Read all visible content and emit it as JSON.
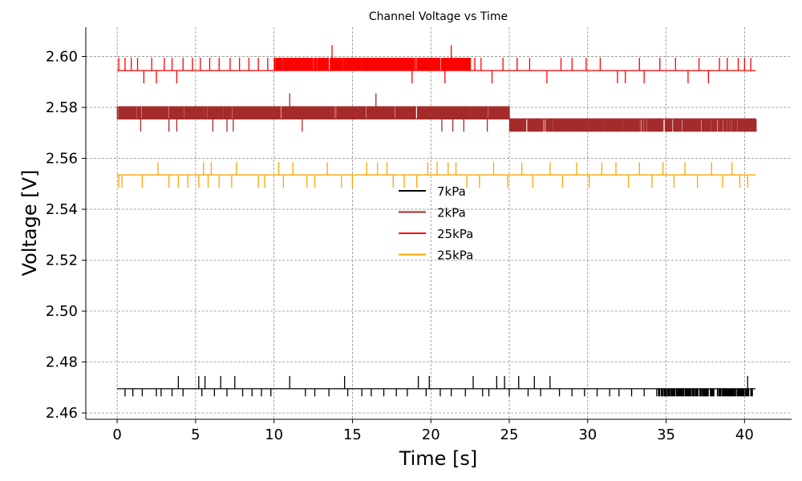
{
  "chart_data": {
    "type": "line",
    "title": "Channel Voltage vs Time",
    "xlabel": "Time [s]",
    "ylabel": "Voltage [V]",
    "xlim": [
      -2,
      43
    ],
    "ylim": [
      2.4575,
      2.6115
    ],
    "xticks": [
      0,
      5,
      10,
      15,
      20,
      25,
      30,
      35,
      40
    ],
    "xtick_labels": [
      "0",
      "5",
      "10",
      "15",
      "20",
      "25",
      "30",
      "35",
      "40"
    ],
    "yticks": [
      2.46,
      2.48,
      2.5,
      2.52,
      2.54,
      2.56,
      2.58,
      2.6
    ],
    "ytick_labels": [
      "2.46",
      "2.48",
      "2.50",
      "2.52",
      "2.54",
      "2.56",
      "2.58",
      "2.60"
    ],
    "grid": true,
    "legend_position": "center",
    "series": [
      {
        "name": "7kPa",
        "color": "#000000",
        "x_range": [
          0,
          40.7
        ],
        "baseline": 2.4695,
        "spikes": [
          {
            "x": 0.5,
            "v": 2.4665
          },
          {
            "x": 1.0,
            "v": 2.4665
          },
          {
            "x": 1.6,
            "v": 2.4665
          },
          {
            "x": 2.5,
            "v": 2.4665
          },
          {
            "x": 2.8,
            "v": 2.4665
          },
          {
            "x": 3.5,
            "v": 2.4665
          },
          {
            "x": 3.9,
            "v": 2.4745
          },
          {
            "x": 4.2,
            "v": 2.4665
          },
          {
            "x": 5.2,
            "v": 2.4745
          },
          {
            "x": 5.4,
            "v": 2.4665
          },
          {
            "x": 5.6,
            "v": 2.4745
          },
          {
            "x": 6.2,
            "v": 2.4665
          },
          {
            "x": 6.6,
            "v": 2.4745
          },
          {
            "x": 7.0,
            "v": 2.4665
          },
          {
            "x": 7.5,
            "v": 2.4745
          },
          {
            "x": 8.0,
            "v": 2.4665
          },
          {
            "x": 8.6,
            "v": 2.4665
          },
          {
            "x": 9.2,
            "v": 2.4665
          },
          {
            "x": 9.8,
            "v": 2.4665
          },
          {
            "x": 11.0,
            "v": 2.4745
          },
          {
            "x": 12.0,
            "v": 2.4665
          },
          {
            "x": 12.6,
            "v": 2.4665
          },
          {
            "x": 13.5,
            "v": 2.4665
          },
          {
            "x": 14.5,
            "v": 2.4745
          },
          {
            "x": 14.7,
            "v": 2.4665
          },
          {
            "x": 15.6,
            "v": 2.4665
          },
          {
            "x": 16.2,
            "v": 2.4665
          },
          {
            "x": 17.0,
            "v": 2.4665
          },
          {
            "x": 17.8,
            "v": 2.4665
          },
          {
            "x": 18.5,
            "v": 2.4665
          },
          {
            "x": 19.2,
            "v": 2.4745
          },
          {
            "x": 19.7,
            "v": 2.4665
          },
          {
            "x": 19.9,
            "v": 2.4745
          },
          {
            "x": 20.6,
            "v": 2.4665
          },
          {
            "x": 21.3,
            "v": 2.4665
          },
          {
            "x": 22.2,
            "v": 2.4665
          },
          {
            "x": 22.7,
            "v": 2.4745
          },
          {
            "x": 23.3,
            "v": 2.4665
          },
          {
            "x": 23.7,
            "v": 2.4665
          },
          {
            "x": 24.2,
            "v": 2.4745
          },
          {
            "x": 24.7,
            "v": 2.4745
          },
          {
            "x": 25.0,
            "v": 2.4665
          },
          {
            "x": 25.6,
            "v": 2.4745
          },
          {
            "x": 26.2,
            "v": 2.4665
          },
          {
            "x": 26.6,
            "v": 2.4745
          },
          {
            "x": 27.0,
            "v": 2.4665
          },
          {
            "x": 27.6,
            "v": 2.4745
          },
          {
            "x": 28.2,
            "v": 2.4665
          },
          {
            "x": 29.0,
            "v": 2.4665
          },
          {
            "x": 29.8,
            "v": 2.4665
          },
          {
            "x": 30.6,
            "v": 2.4665
          },
          {
            "x": 31.4,
            "v": 2.4665
          },
          {
            "x": 32.0,
            "v": 2.4665
          },
          {
            "x": 32.8,
            "v": 2.4665
          },
          {
            "x": 33.6,
            "v": 2.4665
          },
          {
            "x": 34.4,
            "v": 2.4665
          },
          {
            "x": 35.2,
            "v": 2.4665
          },
          {
            "x": 36.0,
            "v": 2.4665
          },
          {
            "x": 36.8,
            "v": 2.4665
          },
          {
            "x": 37.6,
            "v": 2.4665
          },
          {
            "x": 38.4,
            "v": 2.4665
          },
          {
            "x": 39.0,
            "v": 2.4665
          },
          {
            "x": 39.6,
            "v": 2.4665
          },
          {
            "x": 40.2,
            "v": 2.4745
          },
          {
            "x": 40.5,
            "v": 2.4665
          }
        ],
        "dense_intervals": [
          {
            "from": 34.5,
            "to": 40.5,
            "low": 2.4665,
            "high": 2.4695,
            "density": 2.5
          }
        ]
      },
      {
        "name": "2kPa",
        "color": "#a52a2a",
        "x_range": [
          0,
          40.7
        ],
        "baseline": 2.5755,
        "dense_intervals": [
          {
            "from": 0,
            "to": 25,
            "low": 2.5755,
            "high": 2.5805,
            "density": 8
          },
          {
            "from": 25,
            "to": 40.7,
            "low": 2.5705,
            "high": 2.5755,
            "density": 6
          }
        ],
        "spikes": [
          {
            "x": 1.5,
            "v": 2.5705
          },
          {
            "x": 3.3,
            "v": 2.5705
          },
          {
            "x": 3.8,
            "v": 2.5705
          },
          {
            "x": 6.1,
            "v": 2.5705
          },
          {
            "x": 7.0,
            "v": 2.5705
          },
          {
            "x": 7.4,
            "v": 2.5705
          },
          {
            "x": 11.0,
            "v": 2.5855
          },
          {
            "x": 11.8,
            "v": 2.5705
          },
          {
            "x": 16.5,
            "v": 2.5855
          },
          {
            "x": 20.7,
            "v": 2.5705
          },
          {
            "x": 21.4,
            "v": 2.5705
          },
          {
            "x": 22.1,
            "v": 2.5705
          },
          {
            "x": 23.6,
            "v": 2.5705
          }
        ]
      },
      {
        "name": "25kPa",
        "color": "#ff0000",
        "x_range": [
          0,
          40.7
        ],
        "baseline": 2.5945,
        "dense_intervals": [
          {
            "from": 10,
            "to": 22.5,
            "low": 2.5945,
            "high": 2.5995,
            "density": 10
          }
        ],
        "spikes": [
          {
            "x": 0.1,
            "v": 2.5995
          },
          {
            "x": 0.5,
            "v": 2.5995
          },
          {
            "x": 0.9,
            "v": 2.5995
          },
          {
            "x": 1.3,
            "v": 2.5995
          },
          {
            "x": 1.7,
            "v": 2.5895
          },
          {
            "x": 2.2,
            "v": 2.5995
          },
          {
            "x": 2.5,
            "v": 2.5895
          },
          {
            "x": 3.0,
            "v": 2.5995
          },
          {
            "x": 3.5,
            "v": 2.5995
          },
          {
            "x": 3.8,
            "v": 2.5895
          },
          {
            "x": 4.2,
            "v": 2.5995
          },
          {
            "x": 4.8,
            "v": 2.5995
          },
          {
            "x": 5.3,
            "v": 2.5995
          },
          {
            "x": 5.9,
            "v": 2.5995
          },
          {
            "x": 6.5,
            "v": 2.5995
          },
          {
            "x": 7.2,
            "v": 2.5995
          },
          {
            "x": 7.8,
            "v": 2.5995
          },
          {
            "x": 8.4,
            "v": 2.5995
          },
          {
            "x": 9.0,
            "v": 2.5995
          },
          {
            "x": 9.6,
            "v": 2.5995
          },
          {
            "x": 13.7,
            "v": 2.6045
          },
          {
            "x": 18.8,
            "v": 2.5895
          },
          {
            "x": 21.3,
            "v": 2.6045
          },
          {
            "x": 20.9,
            "v": 2.5895
          },
          {
            "x": 22.8,
            "v": 2.5995
          },
          {
            "x": 23.2,
            "v": 2.5995
          },
          {
            "x": 23.9,
            "v": 2.5895
          },
          {
            "x": 24.6,
            "v": 2.5995
          },
          {
            "x": 25.5,
            "v": 2.5995
          },
          {
            "x": 26.3,
            "v": 2.5995
          },
          {
            "x": 27.4,
            "v": 2.5895
          },
          {
            "x": 28.3,
            "v": 2.5995
          },
          {
            "x": 29.0,
            "v": 2.5995
          },
          {
            "x": 29.9,
            "v": 2.5995
          },
          {
            "x": 30.8,
            "v": 2.5995
          },
          {
            "x": 31.9,
            "v": 2.5895
          },
          {
            "x": 32.4,
            "v": 2.5895
          },
          {
            "x": 33.3,
            "v": 2.5995
          },
          {
            "x": 33.6,
            "v": 2.5895
          },
          {
            "x": 34.6,
            "v": 2.5995
          },
          {
            "x": 35.6,
            "v": 2.5995
          },
          {
            "x": 36.4,
            "v": 2.5895
          },
          {
            "x": 37.1,
            "v": 2.5995
          },
          {
            "x": 37.7,
            "v": 2.5895
          },
          {
            "x": 38.4,
            "v": 2.5995
          },
          {
            "x": 38.9,
            "v": 2.5995
          },
          {
            "x": 39.6,
            "v": 2.5995
          },
          {
            "x": 40.0,
            "v": 2.5995
          },
          {
            "x": 40.4,
            "v": 2.5995
          }
        ]
      },
      {
        "name": "25kPa",
        "color": "#ffa500",
        "x_range": [
          0,
          40.7
        ],
        "baseline": 2.5535,
        "spikes": [
          {
            "x": 0.1,
            "v": 2.5485
          },
          {
            "x": 0.3,
            "v": 2.5485
          },
          {
            "x": 0.6,
            "v": 2.5535
          },
          {
            "x": 1.6,
            "v": 2.5485
          },
          {
            "x": 2.6,
            "v": 2.5585
          },
          {
            "x": 3.3,
            "v": 2.5485
          },
          {
            "x": 3.9,
            "v": 2.5485
          },
          {
            "x": 4.5,
            "v": 2.5485
          },
          {
            "x": 5.2,
            "v": 2.5485
          },
          {
            "x": 5.5,
            "v": 2.5585
          },
          {
            "x": 5.8,
            "v": 2.5485
          },
          {
            "x": 6.0,
            "v": 2.5585
          },
          {
            "x": 6.5,
            "v": 2.5485
          },
          {
            "x": 7.3,
            "v": 2.5485
          },
          {
            "x": 7.6,
            "v": 2.5585
          },
          {
            "x": 9.0,
            "v": 2.5485
          },
          {
            "x": 9.4,
            "v": 2.5485
          },
          {
            "x": 10.3,
            "v": 2.5585
          },
          {
            "x": 10.6,
            "v": 2.5485
          },
          {
            "x": 11.2,
            "v": 2.5585
          },
          {
            "x": 12.1,
            "v": 2.5485
          },
          {
            "x": 12.6,
            "v": 2.5485
          },
          {
            "x": 13.4,
            "v": 2.5585
          },
          {
            "x": 14.3,
            "v": 2.5485
          },
          {
            "x": 15.0,
            "v": 2.5485
          },
          {
            "x": 15.9,
            "v": 2.5585
          },
          {
            "x": 16.6,
            "v": 2.5585
          },
          {
            "x": 17.2,
            "v": 2.5585
          },
          {
            "x": 17.6,
            "v": 2.5485
          },
          {
            "x": 18.3,
            "v": 2.5485
          },
          {
            "x": 19.1,
            "v": 2.5485
          },
          {
            "x": 19.8,
            "v": 2.5585
          },
          {
            "x": 20.4,
            "v": 2.5585
          },
          {
            "x": 21.1,
            "v": 2.5585
          },
          {
            "x": 21.6,
            "v": 2.5585
          },
          {
            "x": 22.3,
            "v": 2.5485
          },
          {
            "x": 23.1,
            "v": 2.5485
          },
          {
            "x": 24.0,
            "v": 2.5585
          },
          {
            "x": 24.9,
            "v": 2.5485
          },
          {
            "x": 25.8,
            "v": 2.5585
          },
          {
            "x": 26.5,
            "v": 2.5485
          },
          {
            "x": 27.6,
            "v": 2.5585
          },
          {
            "x": 28.4,
            "v": 2.5485
          },
          {
            "x": 29.3,
            "v": 2.5585
          },
          {
            "x": 30.1,
            "v": 2.5485
          },
          {
            "x": 30.9,
            "v": 2.5585
          },
          {
            "x": 31.8,
            "v": 2.5585
          },
          {
            "x": 32.6,
            "v": 2.5485
          },
          {
            "x": 33.3,
            "v": 2.5585
          },
          {
            "x": 34.1,
            "v": 2.5485
          },
          {
            "x": 34.8,
            "v": 2.5585
          },
          {
            "x": 35.5,
            "v": 2.5485
          },
          {
            "x": 36.2,
            "v": 2.5585
          },
          {
            "x": 37.0,
            "v": 2.5485
          },
          {
            "x": 37.9,
            "v": 2.5585
          },
          {
            "x": 38.6,
            "v": 2.5485
          },
          {
            "x": 39.2,
            "v": 2.5585
          },
          {
            "x": 39.7,
            "v": 2.5485
          },
          {
            "x": 40.2,
            "v": 2.5485
          }
        ]
      }
    ]
  }
}
